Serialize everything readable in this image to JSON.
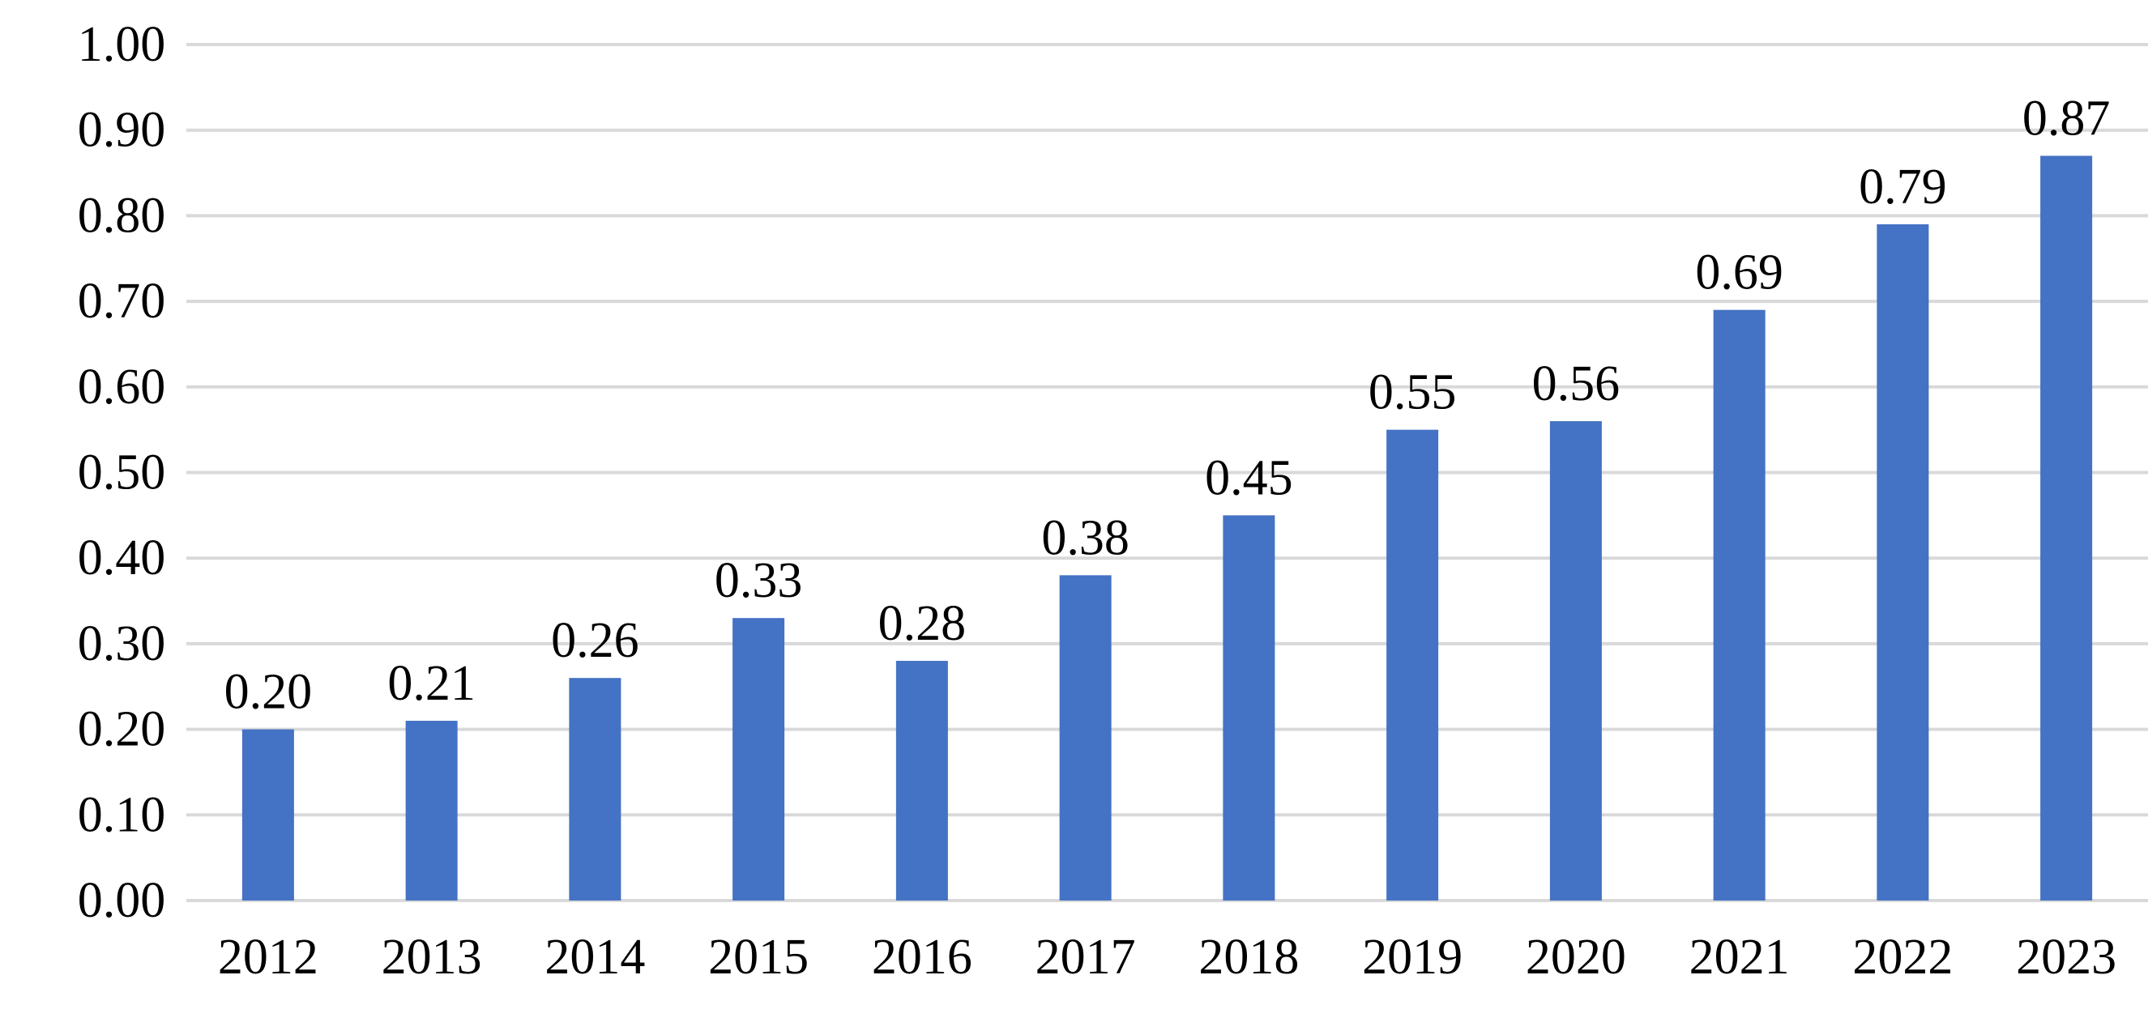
{
  "chart_data": {
    "type": "bar",
    "title": "",
    "xlabel": "",
    "ylabel": "",
    "categories": [
      "2012",
      "2013",
      "2014",
      "2015",
      "2016",
      "2017",
      "2018",
      "2019",
      "2020",
      "2021",
      "2022",
      "2023"
    ],
    "values": [
      0.2,
      0.21,
      0.26,
      0.33,
      0.28,
      0.38,
      0.45,
      0.55,
      0.56,
      0.69,
      0.79,
      0.87
    ],
    "data_labels": [
      "0.20",
      "0.21",
      "0.26",
      "0.33",
      "0.28",
      "0.38",
      "0.45",
      "0.55",
      "0.56",
      "0.69",
      "0.79",
      "0.87"
    ],
    "ylim": [
      0,
      1.0
    ],
    "yticks": [
      0,
      0.1,
      0.2,
      0.3,
      0.4,
      0.5,
      0.6,
      0.7,
      0.8,
      0.9,
      1.0
    ],
    "ytick_labels": [
      "0.00",
      "0.10",
      "0.20",
      "0.30",
      "0.40",
      "0.50",
      "0.60",
      "0.70",
      "0.80",
      "0.90",
      "1.00"
    ],
    "grid": true,
    "legend": "none",
    "colors": {
      "bar": "#4472C4",
      "grid": "#D9D9D9",
      "axis": "#D9D9D9",
      "text": "#000000"
    }
  }
}
